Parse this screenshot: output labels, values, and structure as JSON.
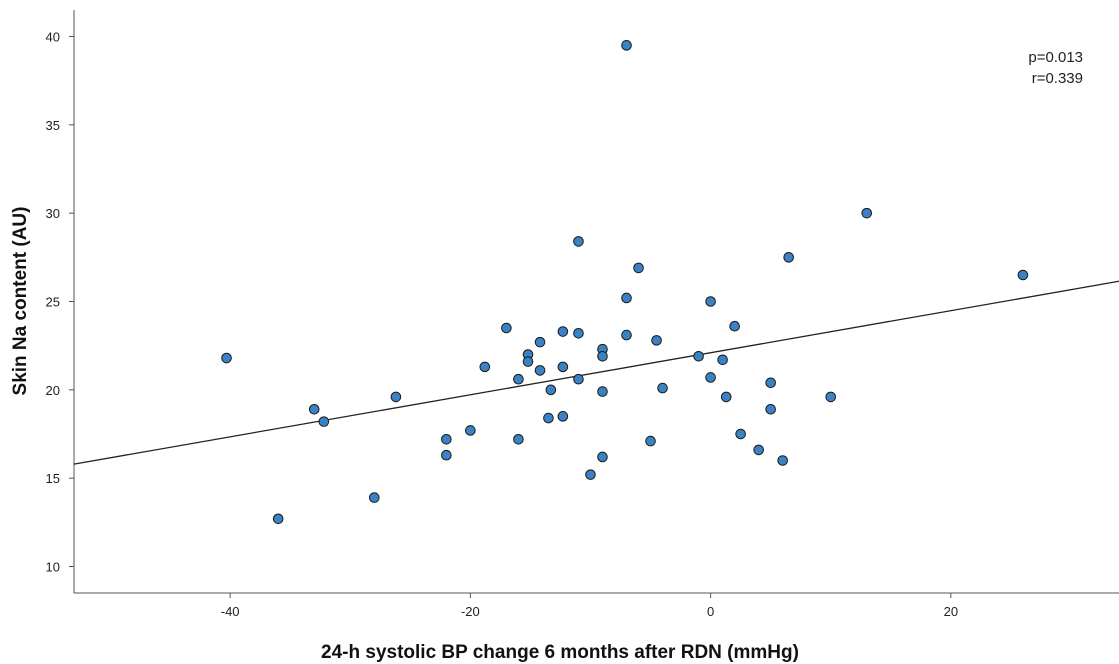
{
  "chart_data": {
    "type": "scatter",
    "xlabel": "24-h systolic BP change 6 months after RDN (mmHg)",
    "ylabel": "Skin Na content (AU)",
    "xlim": [
      -53,
      34
    ],
    "ylim": [
      8.5,
      41.5
    ],
    "xticks": [
      -40,
      -20,
      0,
      20
    ],
    "yticks": [
      10,
      15,
      20,
      25,
      30,
      35,
      40
    ],
    "grid": false,
    "legend": "none",
    "annotations": [
      "p=0.013",
      "r=0.339"
    ],
    "fit_line": {
      "slope": 0.119,
      "intercept": 22.1
    },
    "colors": {
      "marker_fill": "#3a82c4",
      "marker_edge": "#1a1a1a",
      "line": "#222222"
    },
    "points": [
      {
        "x": -40.3,
        "y": 21.8
      },
      {
        "x": -36.0,
        "y": 12.7
      },
      {
        "x": -33.0,
        "y": 18.9
      },
      {
        "x": -32.2,
        "y": 18.2
      },
      {
        "x": -28.0,
        "y": 13.9
      },
      {
        "x": -26.2,
        "y": 19.6
      },
      {
        "x": -22.0,
        "y": 17.2
      },
      {
        "x": -22.0,
        "y": 16.3
      },
      {
        "x": -20.0,
        "y": 17.7
      },
      {
        "x": -18.8,
        "y": 21.3
      },
      {
        "x": -17.0,
        "y": 23.5
      },
      {
        "x": -16.0,
        "y": 20.6
      },
      {
        "x": -16.0,
        "y": 17.2
      },
      {
        "x": -15.2,
        "y": 22.0
      },
      {
        "x": -15.2,
        "y": 21.6
      },
      {
        "x": -14.2,
        "y": 22.7
      },
      {
        "x": -14.2,
        "y": 21.1
      },
      {
        "x": -13.5,
        "y": 18.4
      },
      {
        "x": -13.3,
        "y": 20.0
      },
      {
        "x": -12.3,
        "y": 23.3
      },
      {
        "x": -12.3,
        "y": 21.3
      },
      {
        "x": -12.3,
        "y": 18.5
      },
      {
        "x": -11.0,
        "y": 28.4
      },
      {
        "x": -11.0,
        "y": 23.2
      },
      {
        "x": -11.0,
        "y": 20.6
      },
      {
        "x": -10.0,
        "y": 15.2
      },
      {
        "x": -9.0,
        "y": 22.3
      },
      {
        "x": -9.0,
        "y": 21.9
      },
      {
        "x": -9.0,
        "y": 19.9
      },
      {
        "x": -9.0,
        "y": 16.2
      },
      {
        "x": -7.0,
        "y": 39.5
      },
      {
        "x": -7.0,
        "y": 25.2
      },
      {
        "x": -7.0,
        "y": 23.1
      },
      {
        "x": -6.0,
        "y": 26.9
      },
      {
        "x": -5.0,
        "y": 17.1
      },
      {
        "x": -4.5,
        "y": 22.8
      },
      {
        "x": -4.0,
        "y": 20.1
      },
      {
        "x": -1.0,
        "y": 21.9
      },
      {
        "x": 0.0,
        "y": 25.0
      },
      {
        "x": 0.0,
        "y": 20.7
      },
      {
        "x": 1.0,
        "y": 21.7
      },
      {
        "x": 1.3,
        "y": 19.6
      },
      {
        "x": 2.0,
        "y": 23.6
      },
      {
        "x": 2.5,
        "y": 17.5
      },
      {
        "x": 4.0,
        "y": 16.6
      },
      {
        "x": 5.0,
        "y": 20.4
      },
      {
        "x": 5.0,
        "y": 18.9
      },
      {
        "x": 6.0,
        "y": 16.0
      },
      {
        "x": 6.5,
        "y": 27.5
      },
      {
        "x": 10.0,
        "y": 19.6
      },
      {
        "x": 13.0,
        "y": 30.0
      },
      {
        "x": 26.0,
        "y": 26.5
      }
    ]
  }
}
